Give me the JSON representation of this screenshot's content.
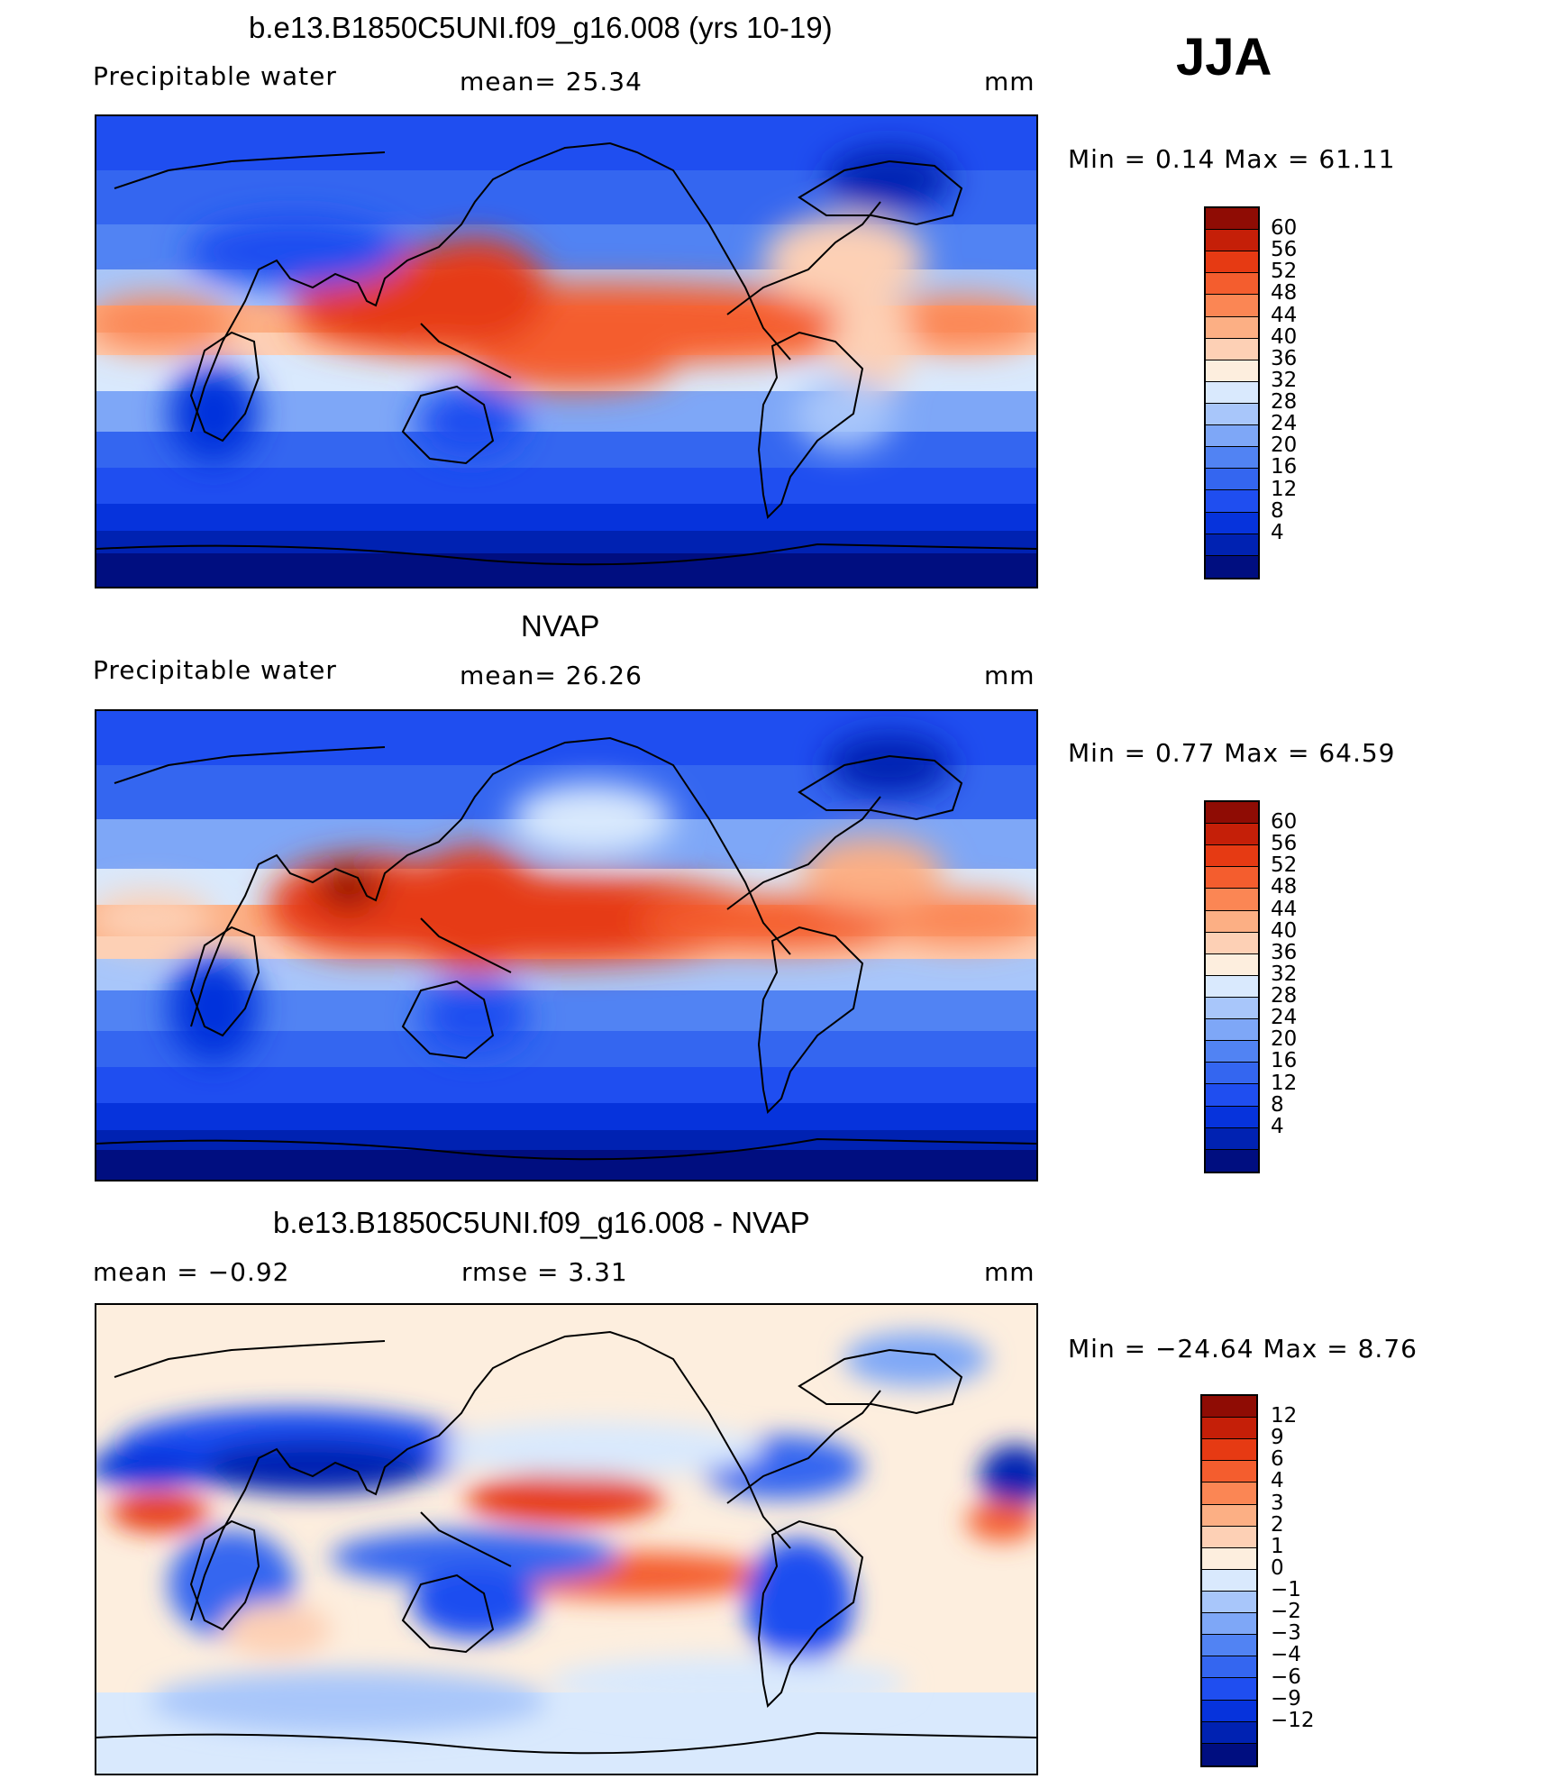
{
  "season": "JJA",
  "colors": {
    "positive_scale": [
      "#000e80",
      "#0022b2",
      "#0633dc",
      "#1f4ef0",
      "#3466f0",
      "#5183f3",
      "#7ea7f7",
      "#a8c6fa",
      "#d9e9fd",
      "#fdeede",
      "#fdd0b5",
      "#fcaf84",
      "#fb8654",
      "#f45d2e",
      "#e63a13",
      "#c51f08",
      "#8f0c04"
    ],
    "difference_scale": [
      "#000e80",
      "#0022b2",
      "#0633dc",
      "#1f4ef0",
      "#3466f0",
      "#5183f3",
      "#7ea7f7",
      "#a8c6fa",
      "#d9e9fd",
      "#fdeede",
      "#fdd0b5",
      "#fcaf84",
      "#fb8654",
      "#f45d2e",
      "#e63a13",
      "#c51f08",
      "#8f0c04"
    ]
  },
  "panels": [
    {
      "title": "b.e13.B1850C5UNI.f09_g16.008 (yrs 10-19)",
      "variable": "Precipitable water",
      "stat_text": "mean=   25.34",
      "units": "mm",
      "minmax": "Min =    0.14  Max =    61.11",
      "colorbar_ticks": [
        "60",
        "56",
        "52",
        "48",
        "44",
        "40",
        "36",
        "32",
        "28",
        "24",
        "20",
        "16",
        "12",
        "8",
        "4"
      ]
    },
    {
      "title": "NVAP",
      "variable": "Precipitable water",
      "stat_text": "mean=   26.26",
      "units": "mm",
      "minmax": "Min =    0.77  Max =    64.59",
      "colorbar_ticks": [
        "60",
        "56",
        "52",
        "48",
        "44",
        "40",
        "36",
        "32",
        "28",
        "24",
        "20",
        "16",
        "12",
        "8",
        "4"
      ]
    },
    {
      "title": "b.e13.B1850C5UNI.f09_g16.008 - NVAP",
      "variable": "mean =   −0.92",
      "stat_text": "rmse =     3.31",
      "units": "mm",
      "minmax": "Min = −24.64  Max =     8.76",
      "colorbar_ticks": [
        "12",
        "9",
        "6",
        "4",
        "3",
        "2",
        "1",
        "0",
        "−1",
        "−2",
        "−3",
        "−4",
        "−6",
        "−9",
        "−12"
      ]
    }
  ]
}
